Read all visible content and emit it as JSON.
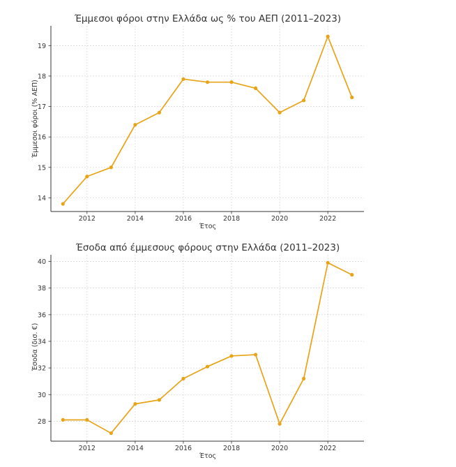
{
  "chart_data": [
    {
      "type": "line",
      "title": "Έμμεσοι φόροι στην Ελλάδα ως % του ΑΕΠ (2011–2023)",
      "xlabel": "Έτος",
      "ylabel": "Έμμεσοι φόροι (% ΑΕΠ)",
      "x": [
        2011,
        2012,
        2013,
        2014,
        2015,
        2016,
        2017,
        2018,
        2019,
        2020,
        2021,
        2022,
        2023
      ],
      "values": [
        13.8,
        14.7,
        15.0,
        16.4,
        16.8,
        17.9,
        17.8,
        17.8,
        17.6,
        16.8,
        17.2,
        19.3,
        17.3
      ],
      "xticks": [
        "2012",
        "2014",
        "2016",
        "2018",
        "2020",
        "2022"
      ],
      "yticks": [
        "14",
        "15",
        "16",
        "17",
        "18",
        "19"
      ],
      "xlim": [
        2010.5,
        2023.5
      ],
      "ylim": [
        13.55,
        19.65
      ],
      "grid": true,
      "color": "#e8a317"
    },
    {
      "type": "line",
      "title": "Έσοδα από έμμεσους φόρους στην Ελλάδα (2011–2023)",
      "xlabel": "Έτος",
      "ylabel": "Έσοδα (δισ. €)",
      "x": [
        2011,
        2012,
        2013,
        2014,
        2015,
        2016,
        2017,
        2018,
        2019,
        2020,
        2021,
        2022,
        2023
      ],
      "values": [
        28.1,
        28.1,
        27.1,
        29.3,
        29.6,
        31.2,
        32.1,
        32.9,
        33.0,
        27.8,
        31.2,
        39.9,
        39.0
      ],
      "xticks": [
        "2012",
        "2014",
        "2016",
        "2018",
        "2020",
        "2022"
      ],
      "yticks": [
        "28",
        "30",
        "32",
        "34",
        "36",
        "38",
        "40"
      ],
      "xlim": [
        2010.5,
        2023.5
      ],
      "ylim": [
        26.5,
        40.5
      ],
      "grid": true,
      "color": "#e8a317"
    }
  ]
}
